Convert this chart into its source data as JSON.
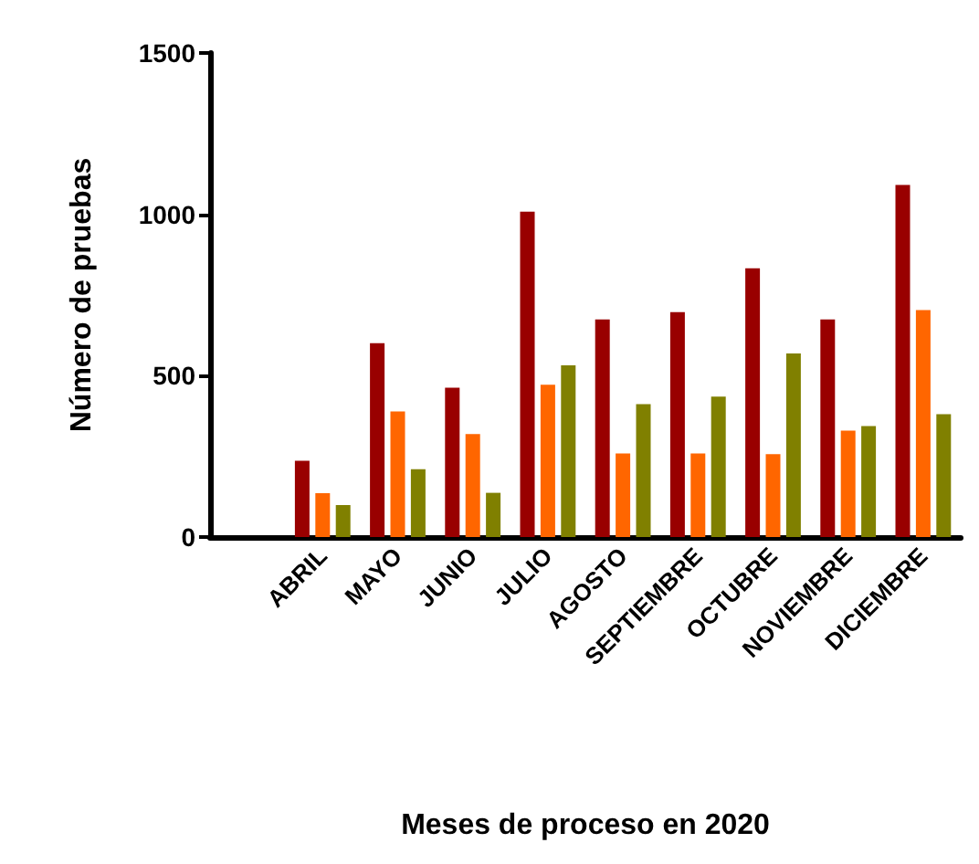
{
  "chart_data": {
    "type": "bar",
    "xlabel": "Meses de proceso en 2020",
    "ylabel": "Número de pruebas",
    "categories": [
      null,
      "ABRIL",
      "MAYO",
      "JUNIO",
      "JULIO",
      "AGOSTO",
      "SEPTIEMBRE",
      "OCTUBRE",
      "NOVIEMBRE",
      "DICIEMBRE"
    ],
    "series": [
      {
        "color": "#990000",
        "values": [
          null,
          236,
          601,
          463,
          1008,
          674,
          697,
          833,
          674,
          1091
        ]
      },
      {
        "color": "#ff6600",
        "values": [
          null,
          136,
          389,
          319,
          472,
          259,
          259,
          257,
          330,
          703
        ]
      },
      {
        "color": "#808000",
        "values": [
          null,
          99,
          210,
          137,
          532,
          412,
          435,
          569,
          344,
          381
        ]
      }
    ],
    "ylim": [
      0,
      1500
    ],
    "yticks": [
      0,
      500,
      1000,
      1500
    ],
    "grid": false
  }
}
